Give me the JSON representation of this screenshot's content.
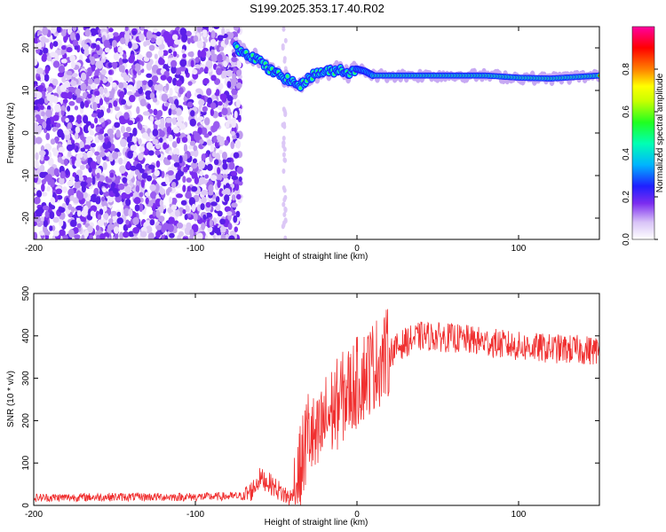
{
  "title": "S199.2025.353.17.40.R02",
  "chart_data": [
    {
      "type": "heatmap",
      "xlabel": "Height of straight line (km)",
      "ylabel": "Frequency (Hz)",
      "xlim": [
        -200,
        150
      ],
      "ylim": [
        -25,
        25
      ],
      "xticks": [
        -200,
        -100,
        0,
        100
      ],
      "yticks": [
        -20,
        -10,
        0,
        10,
        20
      ],
      "noise_region_x": [
        -200,
        -72
      ],
      "sparse_noise_columns_x": [
        -46,
        -44
      ],
      "signal_ridge": {
        "x": [
          -75,
          -70,
          -65,
          -60,
          -55,
          -50,
          -45,
          -40,
          -35,
          -30,
          -25,
          -20,
          -15,
          -10,
          -5,
          0,
          5,
          10,
          20,
          40,
          60,
          80,
          100,
          120,
          150
        ],
        "frequency": [
          20,
          19,
          18,
          17,
          15,
          14,
          13,
          12,
          11,
          13,
          14,
          14.5,
          14.5,
          15,
          14,
          15,
          14.5,
          13.5,
          13.5,
          13.5,
          13.5,
          13.5,
          13,
          12.8,
          13.5
        ]
      },
      "colorbar": {
        "label": "Normalized spectral amplitude",
        "range": [
          0,
          1
        ],
        "ticks": [
          "0.0",
          "0.2",
          "0.4",
          "0.6",
          "0.8"
        ],
        "colors": [
          "#ffffff",
          "#ece0fb",
          "#b98cf0",
          "#7b2cf0",
          "#2020ff",
          "#00c8ff",
          "#00ff80",
          "#40ff00",
          "#ffff00",
          "#ff8000",
          "#ff0000",
          "#ff00a0"
        ]
      }
    },
    {
      "type": "line",
      "xlabel": "Height of straight line (km)",
      "ylabel": "SNR (10 * v/v)",
      "xlim": [
        -200,
        150
      ],
      "ylim": [
        0,
        500
      ],
      "xticks": [
        -200,
        -100,
        0,
        100
      ],
      "yticks": [
        0,
        100,
        200,
        300,
        400,
        500
      ],
      "color": "#f03030",
      "trend": {
        "x": [
          -200,
          -150,
          -100,
          -70,
          -65,
          -60,
          -55,
          -50,
          -45,
          -40,
          -35,
          -30,
          -25,
          -20,
          -10,
          0,
          10,
          20,
          30,
          40,
          60,
          80,
          100,
          120,
          150
        ],
        "y": [
          18,
          20,
          20,
          22,
          35,
          65,
          55,
          40,
          25,
          15,
          80,
          180,
          140,
          200,
          250,
          290,
          330,
          360,
          385,
          400,
          395,
          385,
          375,
          370,
          365
        ]
      }
    }
  ]
}
